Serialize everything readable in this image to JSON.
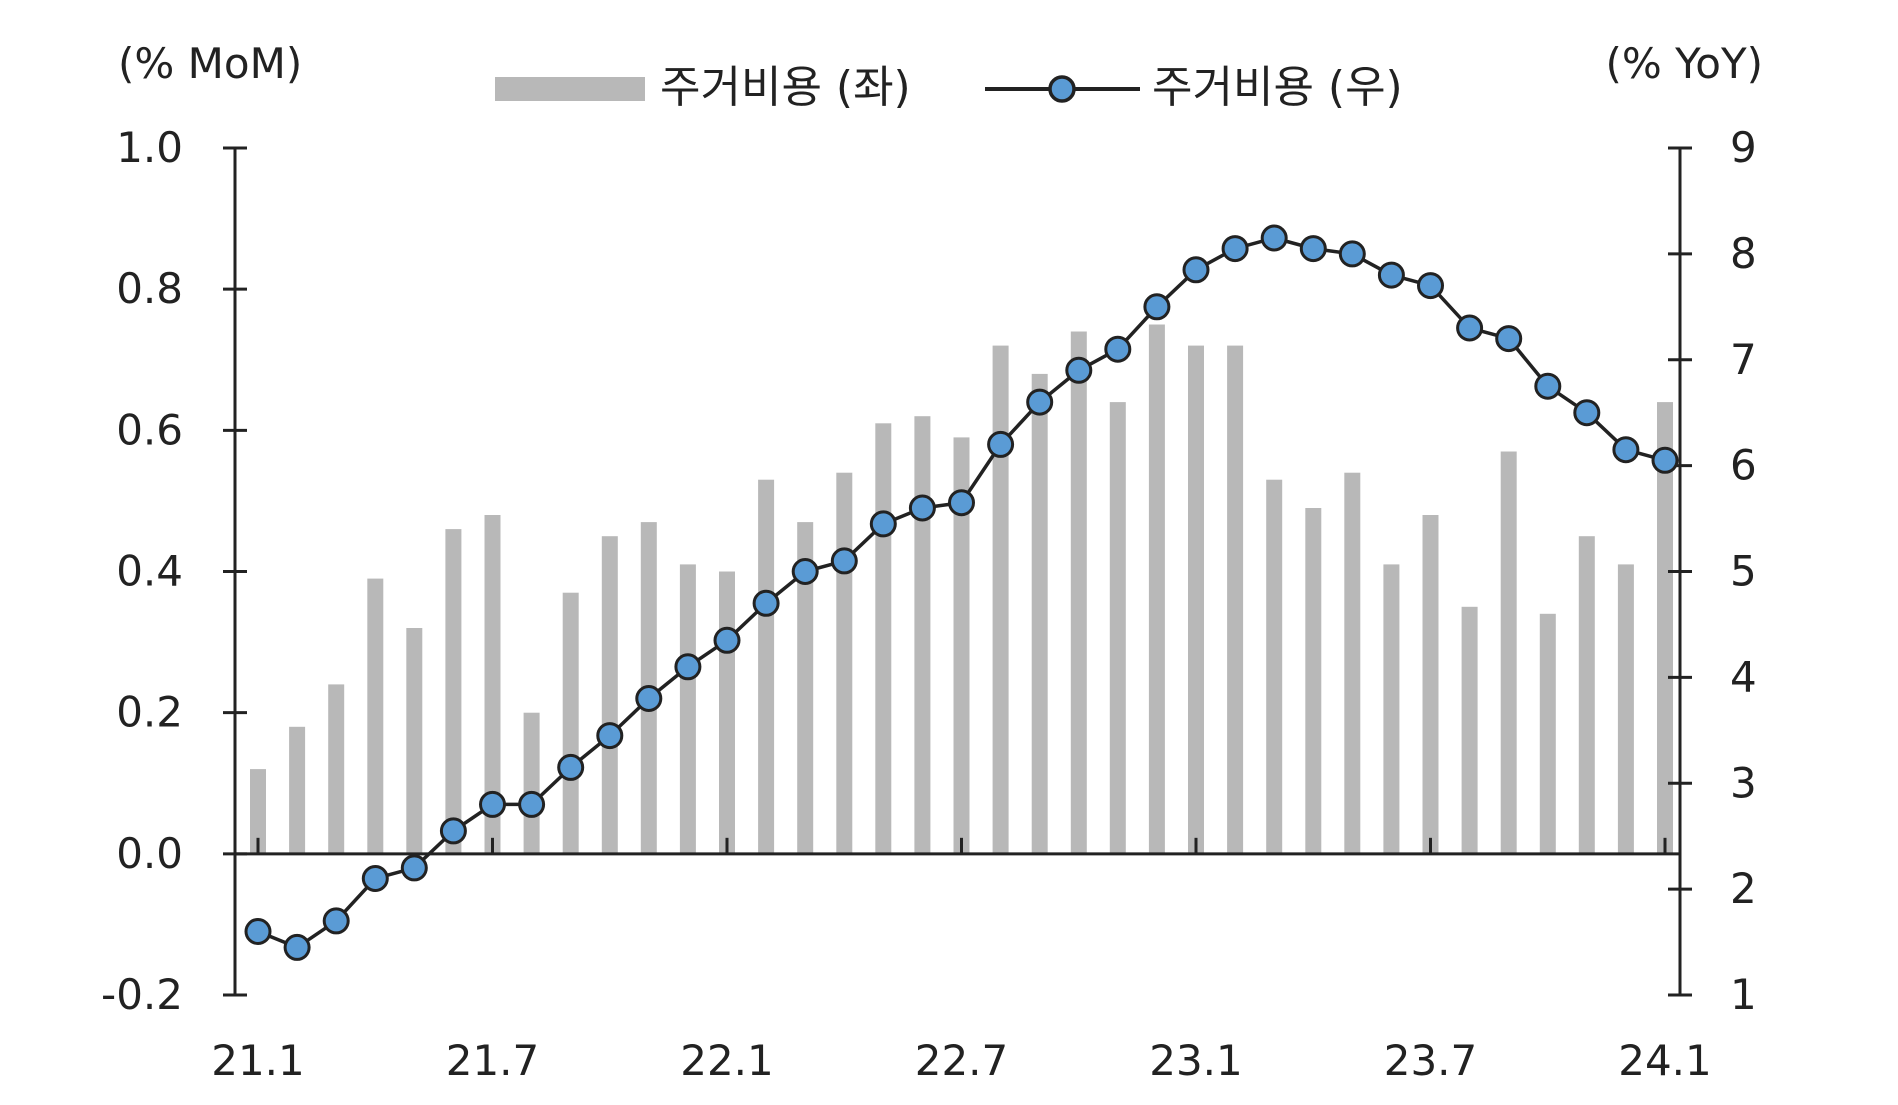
{
  "chart_data": {
    "type": "bar",
    "title": "",
    "left_axis_label": "(% MoM)",
    "right_axis_label": "(% YoY)",
    "left_ylim": [
      -0.2,
      1.0
    ],
    "left_ticks": [
      "1.0",
      "0.8",
      "0.6",
      "0.4",
      "0.2",
      "0.0",
      "-0.2"
    ],
    "right_ylim": [
      1,
      9
    ],
    "right_ticks": [
      "9",
      "8",
      "7",
      "6",
      "5",
      "4",
      "3",
      "2",
      "1"
    ],
    "x_tick_labels": [
      "21.1",
      "21.7",
      "22.1",
      "22.7",
      "23.1",
      "23.7",
      "24.1"
    ],
    "x": [
      "21.1",
      "21.2",
      "21.3",
      "21.4",
      "21.5",
      "21.6",
      "21.7",
      "21.8",
      "21.9",
      "21.10",
      "21.11",
      "21.12",
      "22.1",
      "22.2",
      "22.3",
      "22.4",
      "22.5",
      "22.6",
      "22.7",
      "22.8",
      "22.9",
      "22.10",
      "22.11",
      "22.12",
      "23.1",
      "23.2",
      "23.3",
      "23.4",
      "23.5",
      "23.6",
      "23.7",
      "23.8",
      "23.9",
      "23.10",
      "23.11",
      "23.12",
      "24.1"
    ],
    "grid": false,
    "legend_position": "top",
    "series": [
      {
        "name": "주거비용 (좌)",
        "type": "bar",
        "axis": "left",
        "color": "#b8b8b8",
        "values": [
          0.12,
          0.18,
          0.24,
          0.39,
          0.32,
          0.46,
          0.48,
          0.2,
          0.37,
          0.45,
          0.47,
          0.41,
          0.4,
          0.53,
          0.47,
          0.54,
          0.61,
          0.62,
          0.59,
          0.72,
          0.68,
          0.74,
          0.64,
          0.75,
          0.72,
          0.72,
          0.53,
          0.49,
          0.54,
          0.41,
          0.48,
          0.35,
          0.57,
          0.34,
          0.45,
          0.41,
          0.64
        ]
      },
      {
        "name": "주거비용 (우)",
        "type": "line",
        "axis": "right",
        "color": "#222222",
        "marker_color": "#5a9bd5",
        "values": [
          1.6,
          1.45,
          1.7,
          2.1,
          2.2,
          2.55,
          2.8,
          2.8,
          3.15,
          3.45,
          3.8,
          4.1,
          4.35,
          4.7,
          5.0,
          5.1,
          5.45,
          5.6,
          5.65,
          6.2,
          6.6,
          6.9,
          7.1,
          7.5,
          7.85,
          8.05,
          8.15,
          8.05,
          8.0,
          7.8,
          7.7,
          7.3,
          7.2,
          6.75,
          6.5,
          6.15,
          6.05
        ]
      }
    ]
  }
}
